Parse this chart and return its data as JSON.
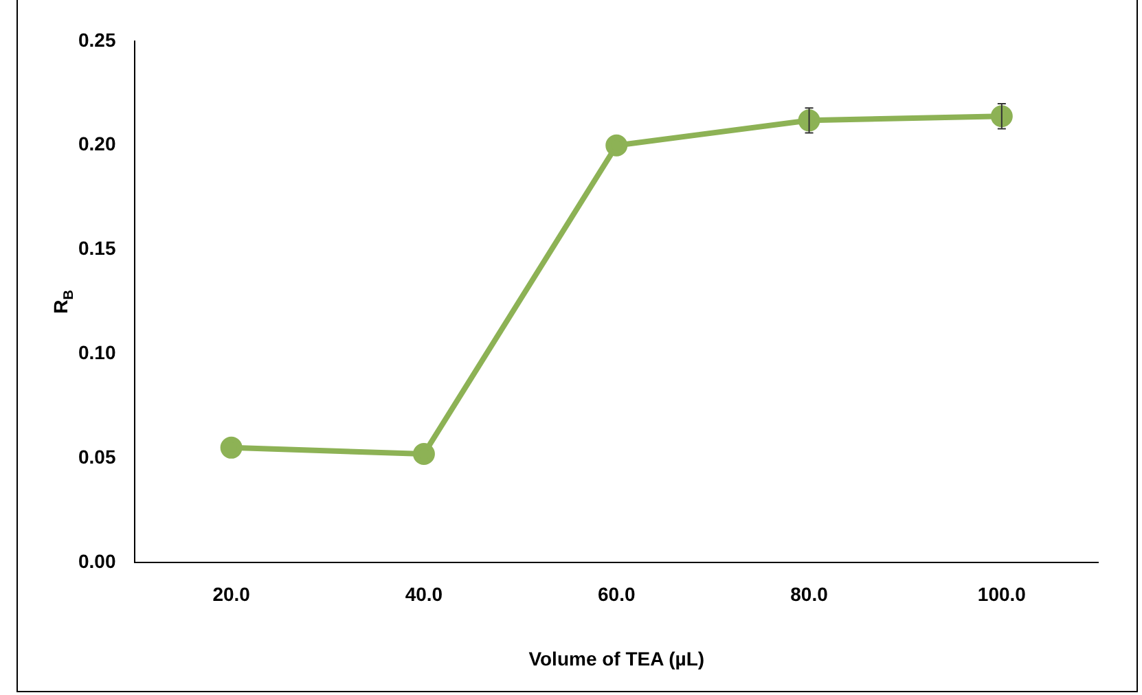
{
  "chart_data": {
    "type": "line",
    "xlabel": "Volume of TEA (µL)",
    "ylabel": "R$_{B}$",
    "categories": [
      "20.0",
      "40.0",
      "60.0",
      "80.0",
      "100.0"
    ],
    "series": [
      {
        "color": "#8db255",
        "values": [
          0.055,
          0.052,
          0.2,
          0.212,
          0.214
        ],
        "errors": [
          null,
          null,
          null,
          0.006,
          0.006
        ]
      }
    ],
    "ylim": [
      0,
      0.25
    ],
    "yticks": [
      {
        "value": 0,
        "label": "0.00"
      },
      {
        "value": 0.05,
        "label": "0.05"
      },
      {
        "value": 0.1,
        "label": "0.10"
      },
      {
        "value": 0.15,
        "label": "0.15"
      },
      {
        "value": 0.2,
        "label": "0.20"
      },
      {
        "value": 0.25,
        "label": "0.25"
      }
    ],
    "grid": false,
    "legend": false,
    "marker": "circle",
    "line_style": "solid"
  }
}
